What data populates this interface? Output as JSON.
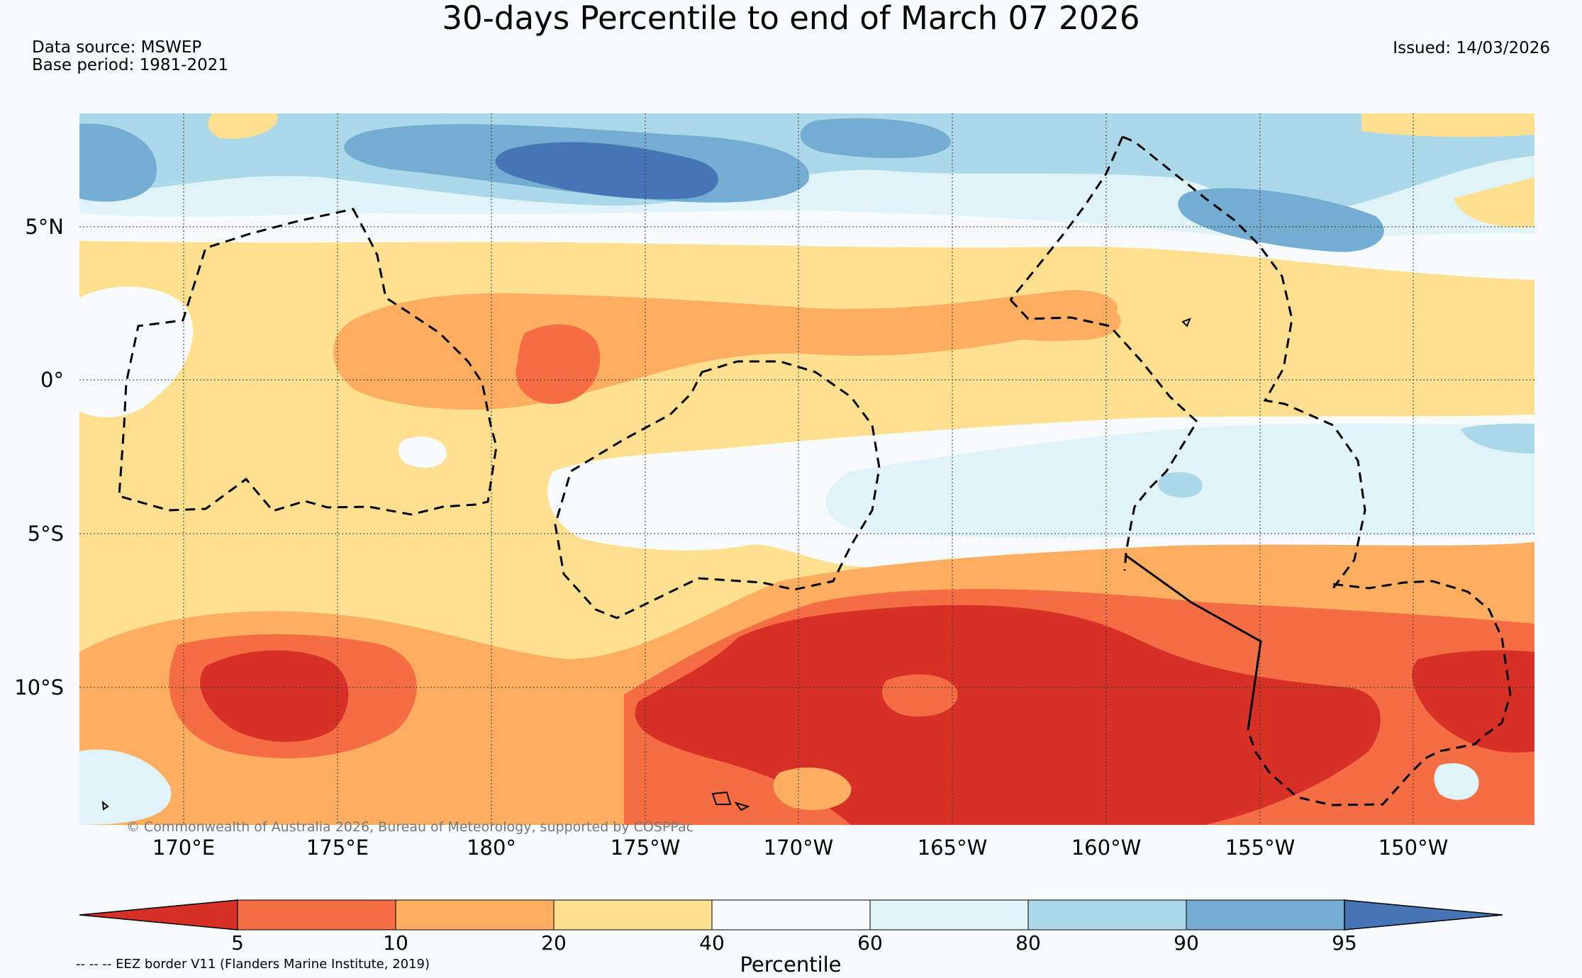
{
  "header": {
    "title": "30-days Percentile to end of March 07 2026",
    "data_source": "Data source: MSWEP",
    "base_period": "Base period: 1981-2021",
    "issued": "Issued: 14/03/2026"
  },
  "map": {
    "lat_labels": [
      "5°N",
      "0°",
      "5°S",
      "10°S"
    ],
    "lon_labels": [
      "170°E",
      "175°E",
      "180°",
      "175°W",
      "170°W",
      "165°W",
      "160°W",
      "155°W",
      "150°W"
    ],
    "copyright": "© Commonwealth of Australia 2026, Bureau of Meteorology, supported by COSPPac",
    "region": {
      "lon_min": 166.6,
      "lon_max": 213.8,
      "lat_min": -14.6,
      "lat_max": 8.6
    }
  },
  "colorbar": {
    "title": "Percentile",
    "ticks": [
      "5",
      "10",
      "20",
      "40",
      "60",
      "80",
      "90",
      "95"
    ],
    "colors": [
      "#d73027",
      "#f46d43",
      "#fdae61",
      "#fee090",
      "#f7fbfc",
      "#e0f3f8",
      "#abd9e9",
      "#74add1",
      "#4575b4"
    ]
  },
  "footer": {
    "eez_note": "-- -- -- EEZ border V11 (Flanders Marine Institute, 2019)"
  }
}
